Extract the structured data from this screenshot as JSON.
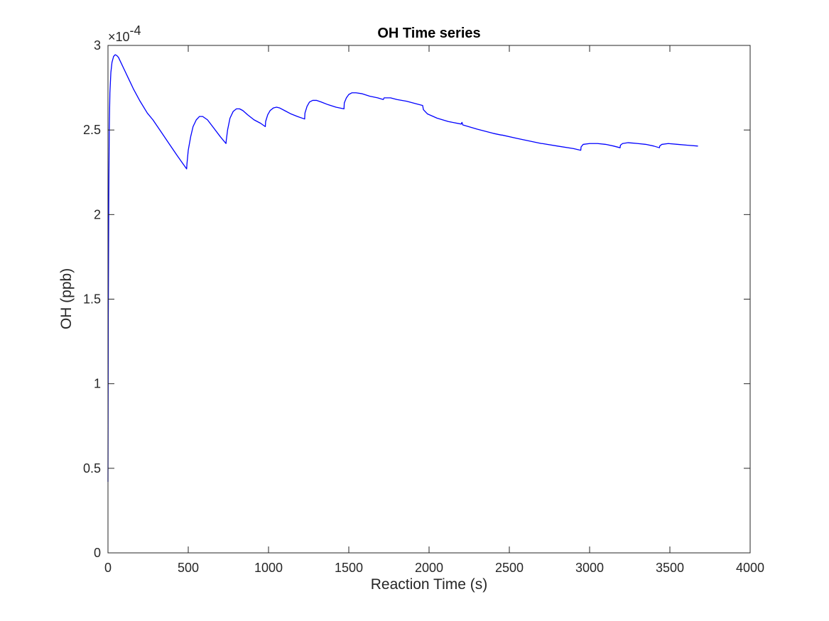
{
  "chart_data": {
    "type": "line",
    "title": "OH Time series",
    "xlabel": "Reaction Time (s)",
    "ylabel": "OH (ppb)",
    "xlim": [
      0,
      4000
    ],
    "ylim": [
      0,
      3
    ],
    "xticks": [
      0,
      500,
      1000,
      1500,
      2000,
      2500,
      3000,
      3500,
      4000
    ],
    "yticks": [
      0,
      0.5,
      1,
      1.5,
      2,
      2.5,
      3
    ],
    "xtick_labels": [
      "0",
      "500",
      "1000",
      "1500",
      "2000",
      "2500",
      "3000",
      "3500",
      "4000"
    ],
    "ytick_labels": [
      "0",
      "0.5",
      "1",
      "1.5",
      "2",
      "2.5",
      "3"
    ],
    "y_multiplier_label": "×10",
    "y_multiplier_exponent": "-4",
    "grid": false,
    "series": [
      {
        "name": "OH",
        "color": "#0000ff",
        "x": [
          0,
          2,
          5,
          8,
          12,
          18,
          25,
          35,
          45,
          55,
          65,
          80,
          100,
          130,
          160,
          200,
          245,
          280,
          330,
          380,
          430,
          490,
          492,
          500,
          515,
          530,
          550,
          570,
          590,
          620,
          660,
          700,
          735,
          737,
          745,
          760,
          780,
          800,
          820,
          840,
          870,
          910,
          950,
          980,
          982,
          995,
          1010,
          1030,
          1050,
          1070,
          1100,
          1140,
          1180,
          1225,
          1227,
          1240,
          1255,
          1275,
          1300,
          1330,
          1370,
          1420,
          1470,
          1472,
          1485,
          1500,
          1520,
          1545,
          1580,
          1630,
          1680,
          1715,
          1720,
          1740,
          1760,
          1800,
          1860,
          1920,
          1960,
          1965,
          1990,
          2050,
          2120,
          2200,
          2205,
          2210,
          2300,
          2400,
          2450,
          2455,
          2550,
          2650,
          2700,
          2705,
          2800,
          2900,
          2945,
          2947,
          2960,
          3000,
          3050,
          3100,
          3150,
          3190,
          3192,
          3205,
          3240,
          3300,
          3350,
          3400,
          3435,
          3437,
          3450,
          3490,
          3550,
          3610,
          3675
        ],
        "y": [
          0.42,
          1.4,
          2.1,
          2.5,
          2.72,
          2.84,
          2.9,
          2.935,
          2.945,
          2.94,
          2.93,
          2.9,
          2.86,
          2.8,
          2.74,
          2.67,
          2.6,
          2.56,
          2.49,
          2.42,
          2.35,
          2.27,
          2.3,
          2.38,
          2.46,
          2.52,
          2.56,
          2.58,
          2.58,
          2.56,
          2.51,
          2.46,
          2.42,
          2.44,
          2.5,
          2.57,
          2.61,
          2.625,
          2.625,
          2.615,
          2.59,
          2.56,
          2.54,
          2.52,
          2.55,
          2.59,
          2.615,
          2.63,
          2.635,
          2.63,
          2.615,
          2.595,
          2.58,
          2.565,
          2.6,
          2.64,
          2.665,
          2.675,
          2.675,
          2.665,
          2.65,
          2.635,
          2.625,
          2.66,
          2.69,
          2.71,
          2.72,
          2.72,
          2.715,
          2.7,
          2.69,
          2.68,
          2.69,
          2.69,
          2.69,
          2.68,
          2.67,
          2.655,
          2.645,
          2.62,
          2.595,
          2.57,
          2.55,
          2.535,
          2.545,
          2.53,
          2.505,
          2.48,
          2.47,
          2.47,
          2.45,
          2.43,
          2.42,
          2.42,
          2.405,
          2.39,
          2.38,
          2.4,
          2.415,
          2.42,
          2.42,
          2.415,
          2.405,
          2.395,
          2.41,
          2.42,
          2.425,
          2.42,
          2.415,
          2.405,
          2.395,
          2.405,
          2.415,
          2.42,
          2.415,
          2.41,
          2.405
        ]
      }
    ]
  }
}
